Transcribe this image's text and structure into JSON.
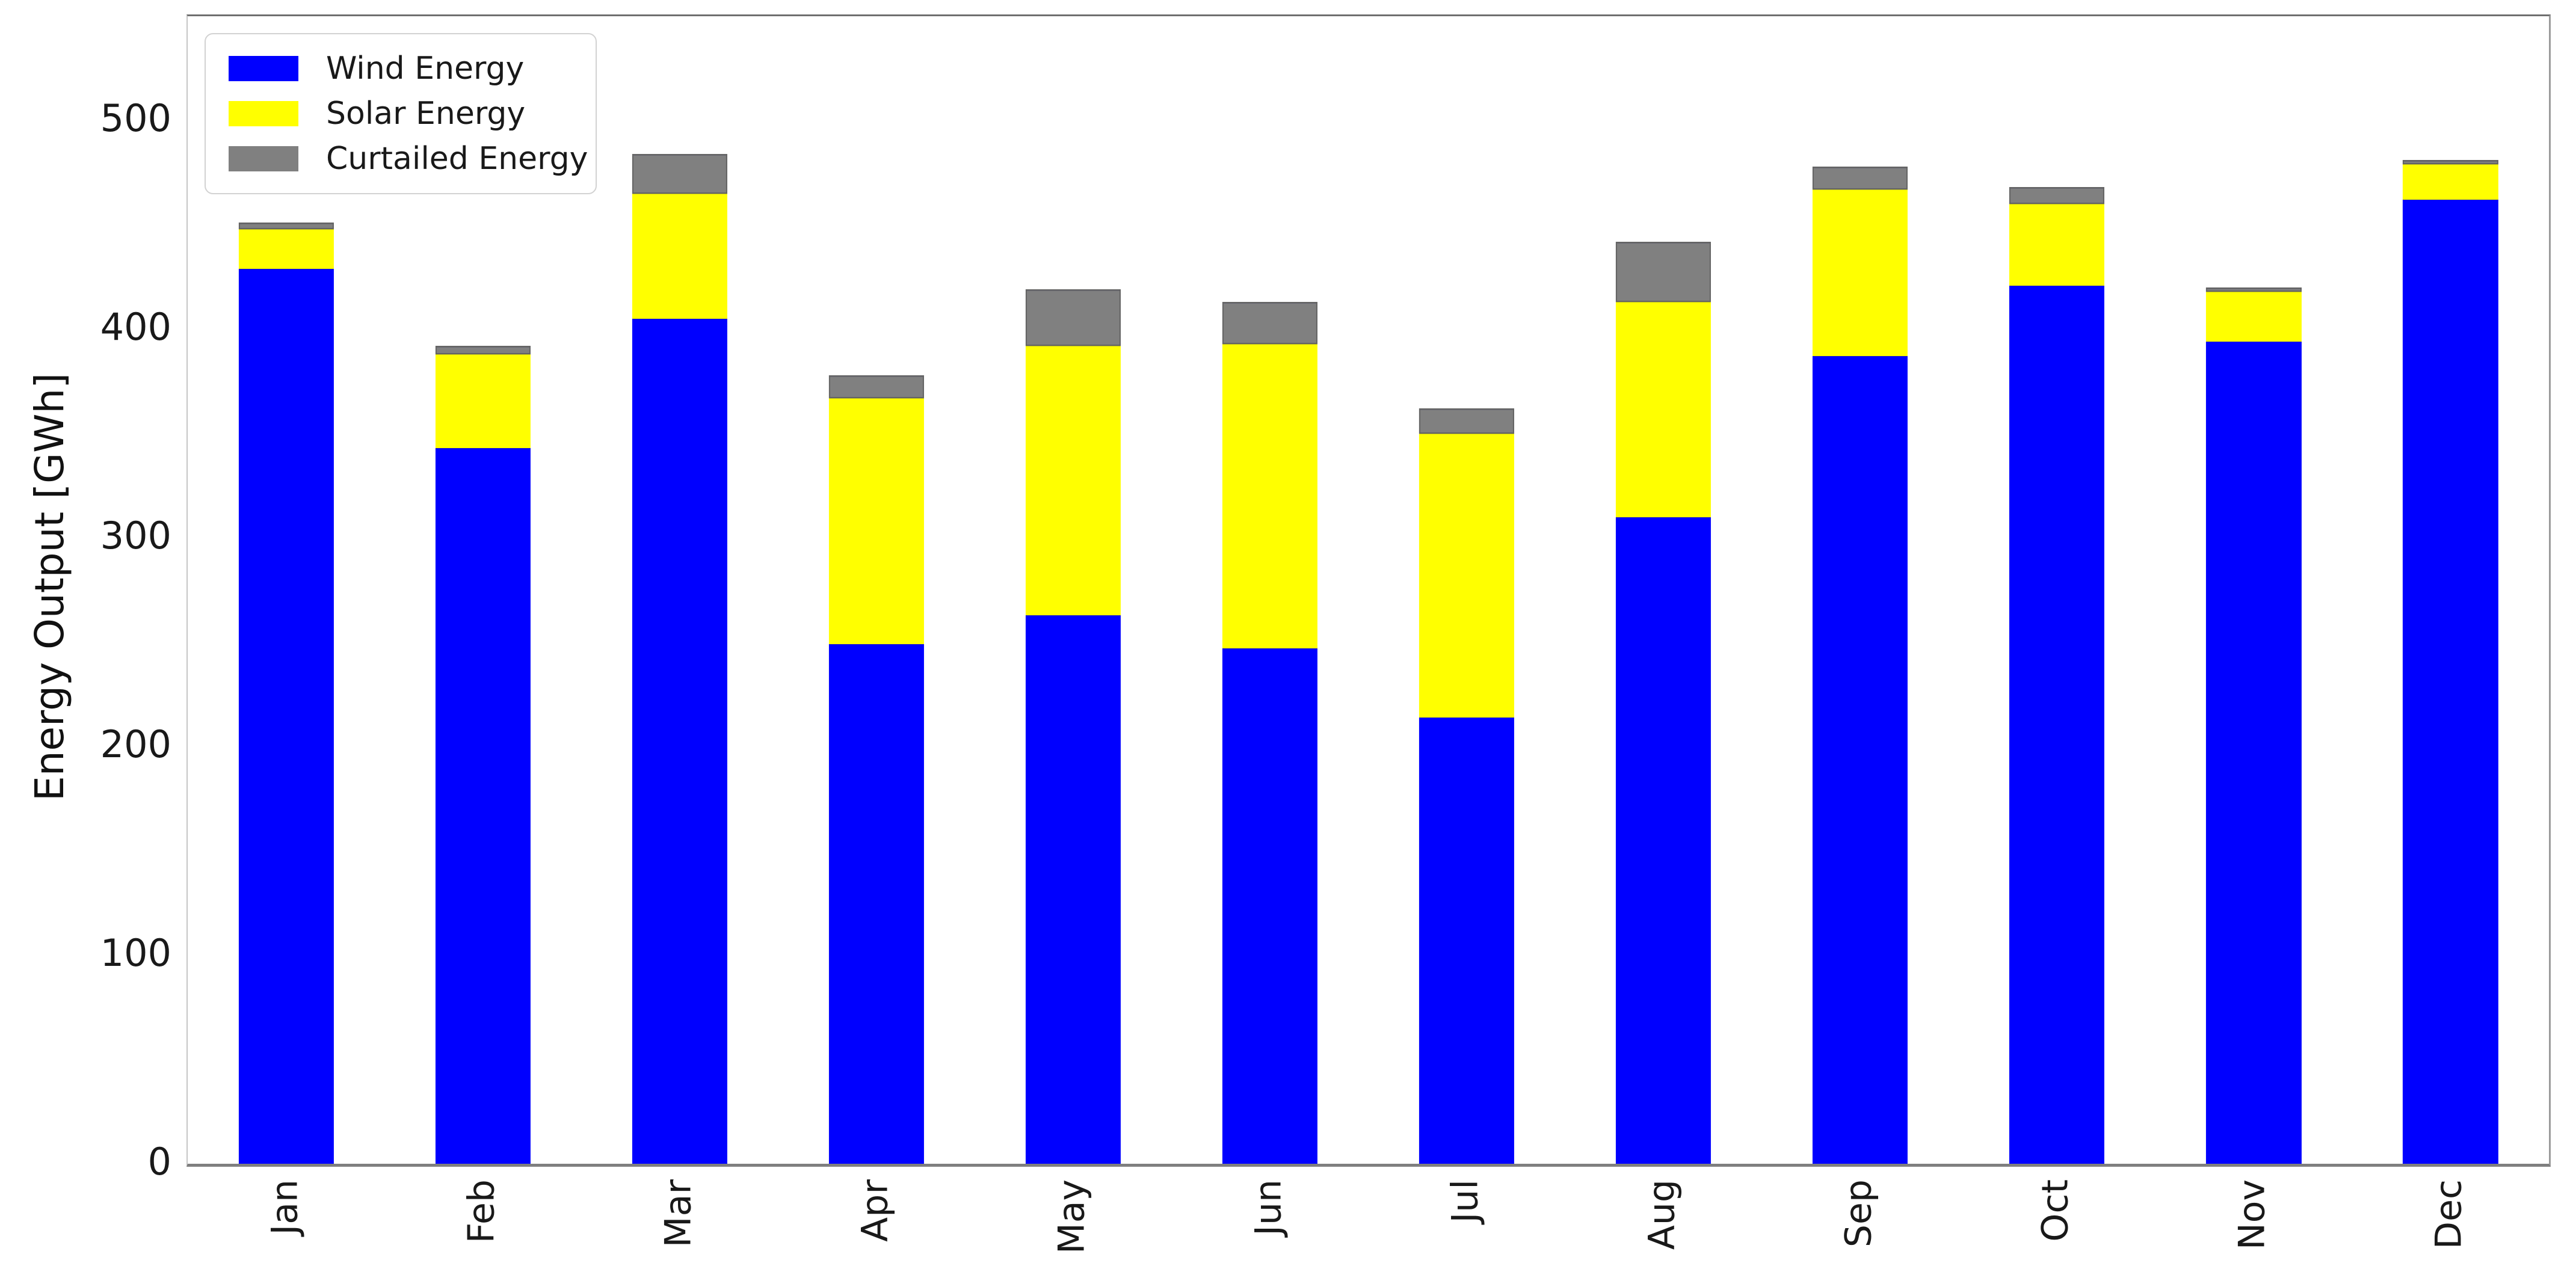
{
  "chart_data": {
    "type": "bar",
    "stacked": true,
    "title": "",
    "xlabel": "",
    "ylabel": "Energy Output [GWh]",
    "categories": [
      "Jan",
      "Feb",
      "Mar",
      "Apr",
      "May",
      "Jun",
      "Jul",
      "Aug",
      "Sep",
      "Oct",
      "Nov",
      "Dec"
    ],
    "series": [
      {
        "name": "Wind Energy",
        "color": "#0000ff",
        "values": [
          429,
          343,
          405,
          249,
          263,
          247,
          214,
          310,
          387,
          421,
          394,
          462
        ]
      },
      {
        "name": "Solar Energy",
        "color": "#ffff00",
        "values": [
          19,
          45,
          60,
          118,
          129,
          146,
          136,
          103,
          80,
          39,
          24,
          17
        ]
      },
      {
        "name": "Curtailed Energy",
        "color": "#808080",
        "values": [
          3,
          4,
          19,
          11,
          27,
          20,
          12,
          29,
          11,
          8,
          2,
          2
        ]
      }
    ],
    "stack_totals": [
      451,
      392,
      484,
      378,
      419,
      413,
      362,
      442,
      478,
      468,
      420,
      481
    ],
    "ylim": [
      0,
      550
    ],
    "yticks": [
      0,
      100,
      200,
      300,
      400,
      500
    ],
    "grid": false,
    "legend_position": "upper left",
    "axis_text_color": "#191919"
  }
}
